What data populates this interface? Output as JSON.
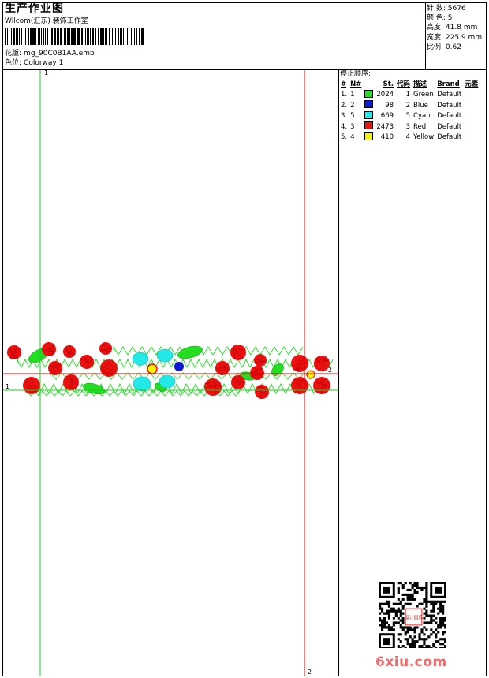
{
  "header": {
    "title": "生产作业图",
    "studio": "Wilcom(汇东) 装饰工作室",
    "design_label": "花版:",
    "design_value": "mg_90C0B1AA.emb",
    "colorway_label": "色位:",
    "colorway_value": "Colorway 1"
  },
  "info": {
    "stitches_label": "针 数:",
    "stitches_value": "5676",
    "colors_label": "颜 色:",
    "colors_value": "5",
    "height_label": "高度:",
    "height_value": "41.8 mm",
    "width_label": "宽度:",
    "width_value": "225.9 mm",
    "scale_label": "比例:",
    "scale_value": "0.62"
  },
  "stop_sequence": {
    "title": "停止顺序:",
    "headers": [
      "#",
      "N#",
      "St.",
      "代码",
      "描述",
      "Brand",
      "元素"
    ],
    "rows": [
      {
        "num": "1.",
        "n": "1",
        "color": "#22dd22",
        "st": "2024",
        "code": "1",
        "desc": "Green",
        "brand": "Default"
      },
      {
        "num": "2.",
        "n": "2",
        "color": "#0a18d8",
        "st": "98",
        "code": "2",
        "desc": "Blue",
        "brand": "Default"
      },
      {
        "num": "3.",
        "n": "5",
        "color": "#22e8e8",
        "st": "669",
        "code": "5",
        "desc": "Cyan",
        "brand": "Default"
      },
      {
        "num": "4.",
        "n": "3",
        "color": "#ee1111",
        "st": "2473",
        "code": "3",
        "desc": "Red",
        "brand": "Default"
      },
      {
        "num": "5.",
        "n": "4",
        "color": "#f5f500",
        "st": "410",
        "code": "4",
        "desc": "Yellow",
        "brand": "Default"
      }
    ]
  },
  "canvas": {
    "guide_green_label_top": "1",
    "guide_green_label_left": "1",
    "guide_red_label_right": "2",
    "guide_red_label_bottom": "2"
  },
  "watermark": {
    "text": "6xiu.com",
    "seal_text": "设计图库"
  },
  "colors": {
    "guide_green": "#22cc22",
    "guide_red": "#dd0000"
  }
}
